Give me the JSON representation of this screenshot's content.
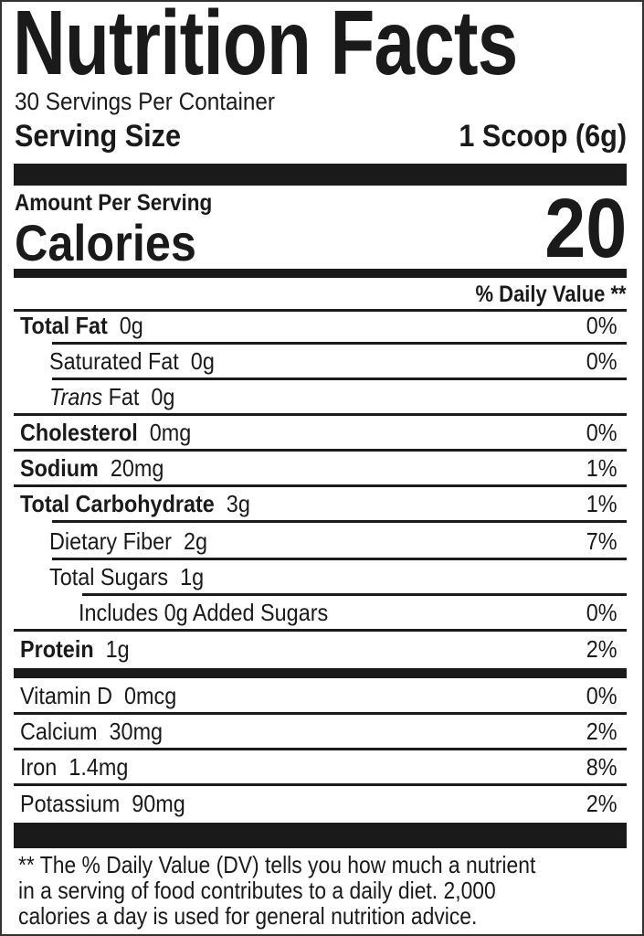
{
  "title": "Nutrition Facts",
  "servings_per_container": "30 Servings Per Container",
  "serving_size": {
    "label": "Serving Size",
    "value": "1 Scoop (6g)"
  },
  "amount_per_serving": "Amount Per Serving",
  "calories": {
    "label": "Calories",
    "value": "20"
  },
  "daily_value_header": "% Daily Value **",
  "nutrients": [
    {
      "name": "Total Fat",
      "amount": "0g",
      "dv": "0%"
    },
    {
      "name": "Saturated Fat",
      "amount": "0g",
      "dv": "0%"
    },
    {
      "name_italic": "Trans",
      "name": "Fat",
      "amount": "0g",
      "dv": ""
    },
    {
      "name": "Cholesterol",
      "amount": "0mg",
      "dv": "0%"
    },
    {
      "name": "Sodium",
      "amount": "20mg",
      "dv": "1%"
    },
    {
      "name": "Total Carbohydrate",
      "amount": "3g",
      "dv": "1%"
    },
    {
      "name": "Dietary Fiber",
      "amount": "2g",
      "dv": "7%"
    },
    {
      "name": "Total Sugars",
      "amount": "1g",
      "dv": ""
    },
    {
      "name": "Includes 0g Added Sugars",
      "amount": "",
      "dv": "0%"
    },
    {
      "name": "Protein",
      "amount": "1g",
      "dv": "2%"
    }
  ],
  "vitamins": [
    {
      "name": "Vitamin D",
      "amount": "0mcg",
      "dv": "0%"
    },
    {
      "name": "Calcium",
      "amount": "30mg",
      "dv": "2%"
    },
    {
      "name": "Iron",
      "amount": "1.4mg",
      "dv": "8%"
    },
    {
      "name": "Potassium",
      "amount": "90mg",
      "dv": "2%"
    }
  ],
  "footnote": [
    "** The % Daily Value (DV) tells you how much a nutrient",
    "in a serving of food contributes to a daily diet. 2,000",
    "calories a day is used for general nutrition advice."
  ]
}
